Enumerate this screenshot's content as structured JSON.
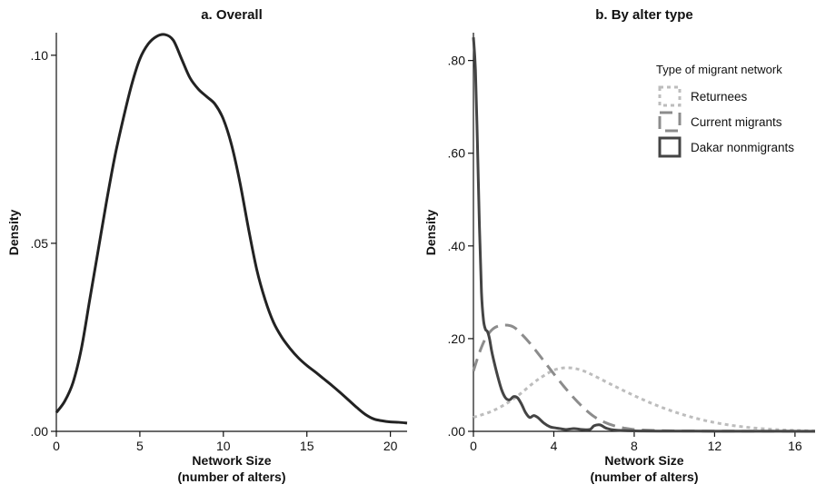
{
  "chart_data": [
    {
      "type": "line",
      "title": "a. Overall",
      "xlabel": "Network Size",
      "xlabel_line2": "(number of alters)",
      "ylabel": "Density",
      "xlim": [
        0,
        21
      ],
      "ylim": [
        0,
        0.106
      ],
      "xticks": [
        0,
        5,
        10,
        15,
        20
      ],
      "xtick_labels": [
        "0",
        "5",
        "10",
        "15",
        "20"
      ],
      "yticks": [
        0,
        0.05,
        0.1
      ],
      "ytick_labels": [
        ".00",
        ".05",
        ".10"
      ],
      "series": [
        {
          "color": "#222222",
          "dash": "solid",
          "x": [
            0,
            0.5,
            1,
            1.5,
            2,
            2.5,
            3,
            3.5,
            4,
            4.5,
            5,
            5.5,
            6,
            6.5,
            7,
            7.5,
            8,
            8.5,
            9,
            9.5,
            10,
            10.5,
            11,
            11.5,
            12,
            12.5,
            13,
            13.5,
            14,
            14.5,
            15,
            15.5,
            16,
            16.5,
            17,
            17.5,
            18,
            18.5,
            19,
            19.5,
            20,
            20.5,
            21
          ],
          "y": [
            0.005,
            0.008,
            0.013,
            0.022,
            0.035,
            0.048,
            0.061,
            0.073,
            0.083,
            0.092,
            0.099,
            0.103,
            0.105,
            0.1055,
            0.104,
            0.099,
            0.094,
            0.091,
            0.089,
            0.087,
            0.083,
            0.076,
            0.066,
            0.054,
            0.043,
            0.035,
            0.029,
            0.025,
            0.022,
            0.0195,
            0.0175,
            0.0158,
            0.014,
            0.0122,
            0.0103,
            0.0083,
            0.0063,
            0.0045,
            0.0033,
            0.0028,
            0.0025,
            0.0024,
            0.0022
          ]
        }
      ]
    },
    {
      "type": "line",
      "title": "b. By alter type",
      "xlabel": "Network Size",
      "xlabel_line2": "(number of alters)",
      "ylabel": "Density",
      "xlim": [
        0,
        17
      ],
      "ylim": [
        0,
        0.86
      ],
      "xticks": [
        0,
        4,
        8,
        12,
        16
      ],
      "xtick_labels": [
        "0",
        "4",
        "8",
        "12",
        "16"
      ],
      "yticks": [
        0,
        0.2,
        0.4,
        0.6,
        0.8
      ],
      "ytick_labels": [
        ".00",
        ".20",
        ".40",
        ".60",
        ".80"
      ],
      "legend": {
        "title": "Type of migrant network",
        "placement": "top-right"
      },
      "series": [
        {
          "name": "Returnees",
          "color": "#bdbdbd",
          "dash": "dotted",
          "x": [
            0,
            1,
            2,
            3,
            3.5,
            4,
            4.5,
            5,
            5.5,
            6,
            7,
            8,
            9,
            10,
            11,
            12,
            13,
            14,
            15,
            16,
            17
          ],
          "y": [
            0.03,
            0.045,
            0.07,
            0.105,
            0.12,
            0.132,
            0.137,
            0.136,
            0.13,
            0.12,
            0.098,
            0.077,
            0.058,
            0.042,
            0.029,
            0.019,
            0.012,
            0.007,
            0.004,
            0.002,
            0.001
          ]
        },
        {
          "name": "Current migrants",
          "color": "#8c8c8c",
          "dash": "dashed",
          "x": [
            0,
            0.3,
            0.6,
            1,
            1.5,
            2,
            2.5,
            3,
            3.5,
            4,
            4.5,
            5,
            5.5,
            6,
            6.5,
            7,
            7.5,
            8,
            9,
            10,
            12,
            14,
            17
          ],
          "y": [
            0.13,
            0.17,
            0.2,
            0.222,
            0.229,
            0.225,
            0.205,
            0.18,
            0.152,
            0.124,
            0.097,
            0.072,
            0.05,
            0.032,
            0.02,
            0.012,
            0.007,
            0.004,
            0.002,
            0.001,
            0.0005,
            0.0003,
            0.0002
          ]
        },
        {
          "name": "Dakar nonmigrants",
          "color": "#444444",
          "dash": "solid",
          "x": [
            0,
            0.1,
            0.2,
            0.3,
            0.4,
            0.5,
            0.6,
            0.7,
            0.8,
            0.9,
            1.0,
            1.2,
            1.4,
            1.6,
            1.8,
            2.0,
            2.2,
            2.4,
            2.6,
            2.8,
            3.0,
            3.2,
            3.5,
            3.8,
            4.0,
            4.3,
            4.6,
            5.0,
            5.4,
            5.8,
            6.0,
            6.3,
            6.6,
            7,
            8,
            10,
            12,
            14,
            17
          ],
          "y": [
            0.85,
            0.78,
            0.62,
            0.44,
            0.3,
            0.24,
            0.22,
            0.215,
            0.2,
            0.175,
            0.155,
            0.12,
            0.09,
            0.072,
            0.068,
            0.075,
            0.072,
            0.058,
            0.04,
            0.03,
            0.034,
            0.03,
            0.018,
            0.01,
            0.008,
            0.006,
            0.004,
            0.006,
            0.004,
            0.004,
            0.012,
            0.014,
            0.007,
            0.003,
            0.001,
            0.0005,
            0.0003,
            0.0002,
            0.0001
          ]
        }
      ]
    }
  ]
}
